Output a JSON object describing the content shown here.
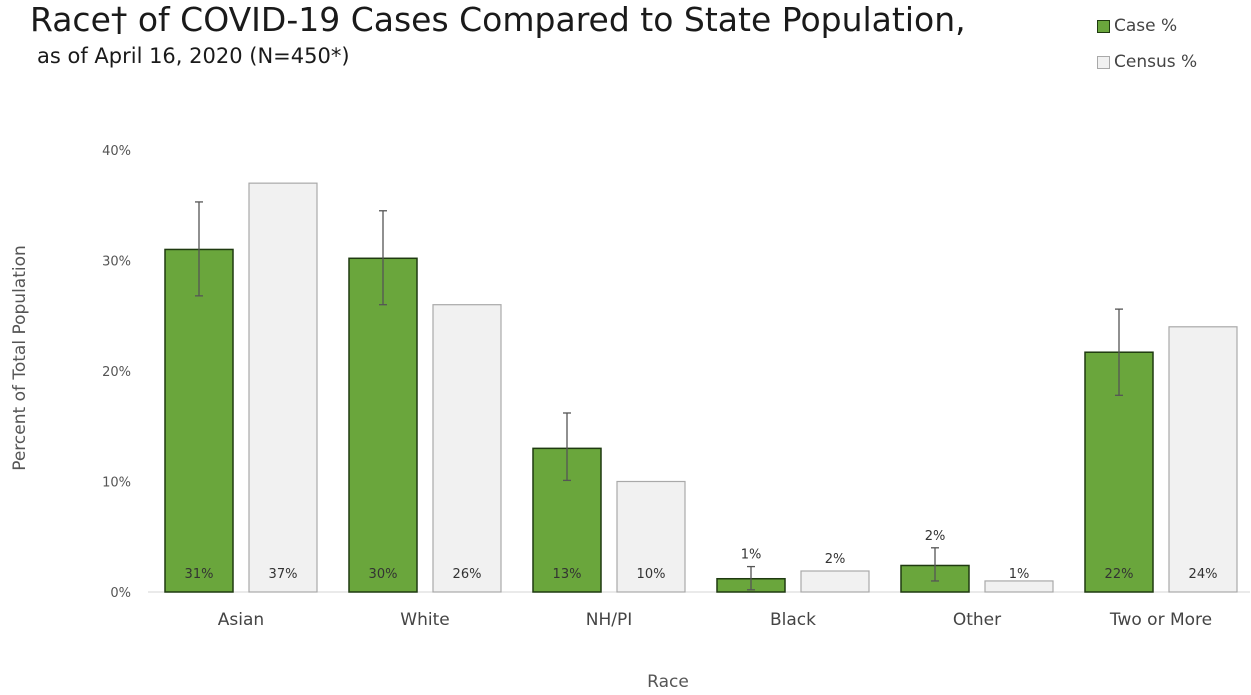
{
  "colors": {
    "case": "#6aa63c",
    "case_border": "#1f3a10",
    "census": "#f1f1f1",
    "census_border": "#a9a9a9",
    "errorbar": "#555555"
  },
  "chart_data": {
    "type": "bar",
    "title": "Race† of COVID-19 Cases Compared to State Population,",
    "subtitle": "as of April 16, 2020 (N=450*)",
    "xlabel": "Race",
    "ylabel": "Percent of Total Population",
    "ylim": [
      0,
      40
    ],
    "yticks": [
      0,
      10,
      20,
      30,
      40
    ],
    "ytick_labels": [
      "0%",
      "10%",
      "20%",
      "30%",
      "40%"
    ],
    "categories": [
      "Asian",
      "White",
      "NH/PI",
      "Black",
      "Other",
      "Two or More"
    ],
    "legend_position": "top-right",
    "series": [
      {
        "name": "Case %",
        "values": [
          31,
          30.2,
          13,
          1.2,
          2.4,
          21.7
        ],
        "labels": [
          "31%",
          "30%",
          "13%",
          "1%",
          "2%",
          "22%"
        ],
        "error_low": [
          26.8,
          26,
          10.1,
          0.2,
          1,
          17.8
        ],
        "error_high": [
          35.3,
          34.5,
          16.2,
          2.3,
          4,
          25.6
        ]
      },
      {
        "name": "Census %",
        "values": [
          37,
          26,
          10,
          1.9,
          1,
          24
        ],
        "labels": [
          "37%",
          "26%",
          "10%",
          "2%",
          "1%",
          "24%"
        ]
      }
    ]
  }
}
